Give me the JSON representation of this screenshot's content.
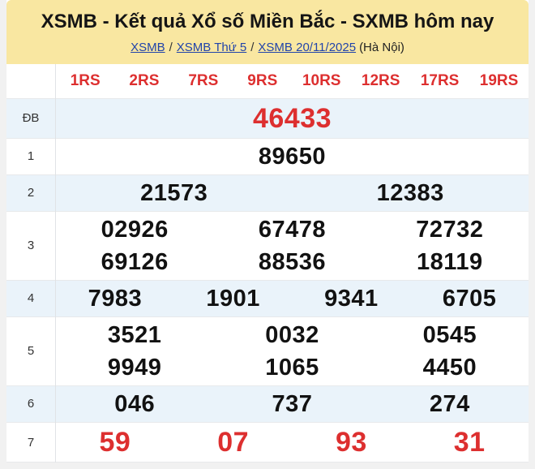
{
  "header": {
    "title": "XSMB - Kết quả Xổ số Miền Bắc - SXMB hôm nay",
    "breadcrumb": {
      "links": [
        "XSMB",
        "XSMB Thứ 5",
        "XSMB 20/11/2025"
      ],
      "separator": "/",
      "suffix": "(Hà Nội)"
    }
  },
  "table": {
    "columns": [
      "1RS",
      "2RS",
      "7RS",
      "9RS",
      "10RS",
      "12RS",
      "17RS",
      "19RS"
    ],
    "rows": [
      {
        "label": "ĐB",
        "cols": 1,
        "highlight": true,
        "values": [
          "46433"
        ]
      },
      {
        "label": "1",
        "cols": 1,
        "highlight": false,
        "values": [
          "89650"
        ]
      },
      {
        "label": "2",
        "cols": 2,
        "highlight": false,
        "values": [
          "21573",
          "12383"
        ]
      },
      {
        "label": "3",
        "cols": 3,
        "highlight": false,
        "values": [
          "02926",
          "67478",
          "72732",
          "69126",
          "88536",
          "18119"
        ]
      },
      {
        "label": "4",
        "cols": 4,
        "highlight": false,
        "values": [
          "7983",
          "1901",
          "9341",
          "6705"
        ]
      },
      {
        "label": "5",
        "cols": 3,
        "highlight": false,
        "values": [
          "3521",
          "0032",
          "0545",
          "9949",
          "1065",
          "4450"
        ]
      },
      {
        "label": "6",
        "cols": 3,
        "highlight": false,
        "values": [
          "046",
          "737",
          "274"
        ]
      },
      {
        "label": "7",
        "cols": 4,
        "highlight": true,
        "values": [
          "59",
          "07",
          "93",
          "31"
        ]
      }
    ]
  },
  "colors": {
    "header_background": "#f9e7a1",
    "stripe_row_background": "#eaf3fa",
    "highlight_red": "#dd2f2f",
    "link_blue": "#2244aa"
  }
}
